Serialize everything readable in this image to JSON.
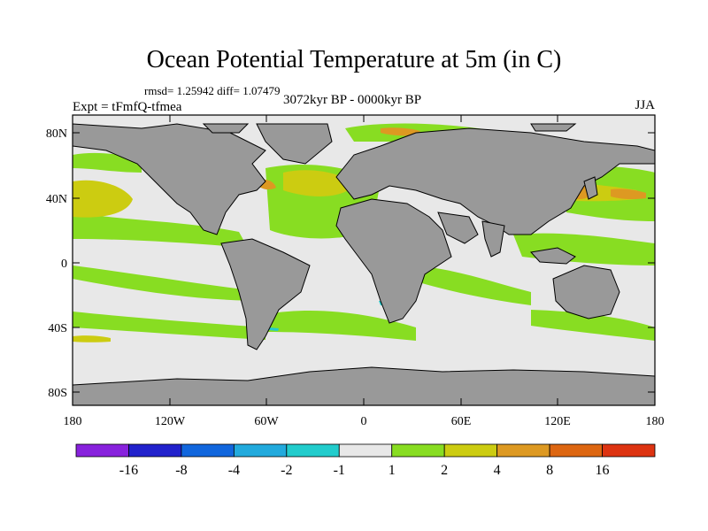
{
  "title": "Ocean Potential Temperature at 5m (in C)",
  "stats": "rmsd= 1.25942 diff= 1.07479",
  "experiment": "Expt = tFmfQ-tfmea",
  "period": "3072kyr BP - 0000kyr BP",
  "season": "JJA",
  "map_data": {
    "lat_ticks": [
      "80N",
      "40N",
      "0",
      "40S",
      "80S"
    ],
    "lon_ticks": [
      "180",
      "120W",
      "60W",
      "0",
      "60E",
      "120E",
      "180"
    ],
    "colors": {
      "land": "#999999",
      "neutral": "#e8e8e8",
      "green": "#88dd22",
      "yellow": "#cccc11",
      "orange": "#dd9922",
      "dark_orange": "#dd6611",
      "cyan": "#22cccc"
    }
  },
  "colorbar": {
    "labels": [
      "-16",
      "-8",
      "-4",
      "-2",
      "-1",
      "1",
      "2",
      "4",
      "8",
      "16"
    ],
    "colors": [
      "#8822dd",
      "#2222cc",
      "#1166dd",
      "#22aadd",
      "#22cccc",
      "#e8e8e8",
      "#88dd22",
      "#cccc11",
      "#dd9922",
      "#dd6611",
      "#dd3311"
    ]
  }
}
